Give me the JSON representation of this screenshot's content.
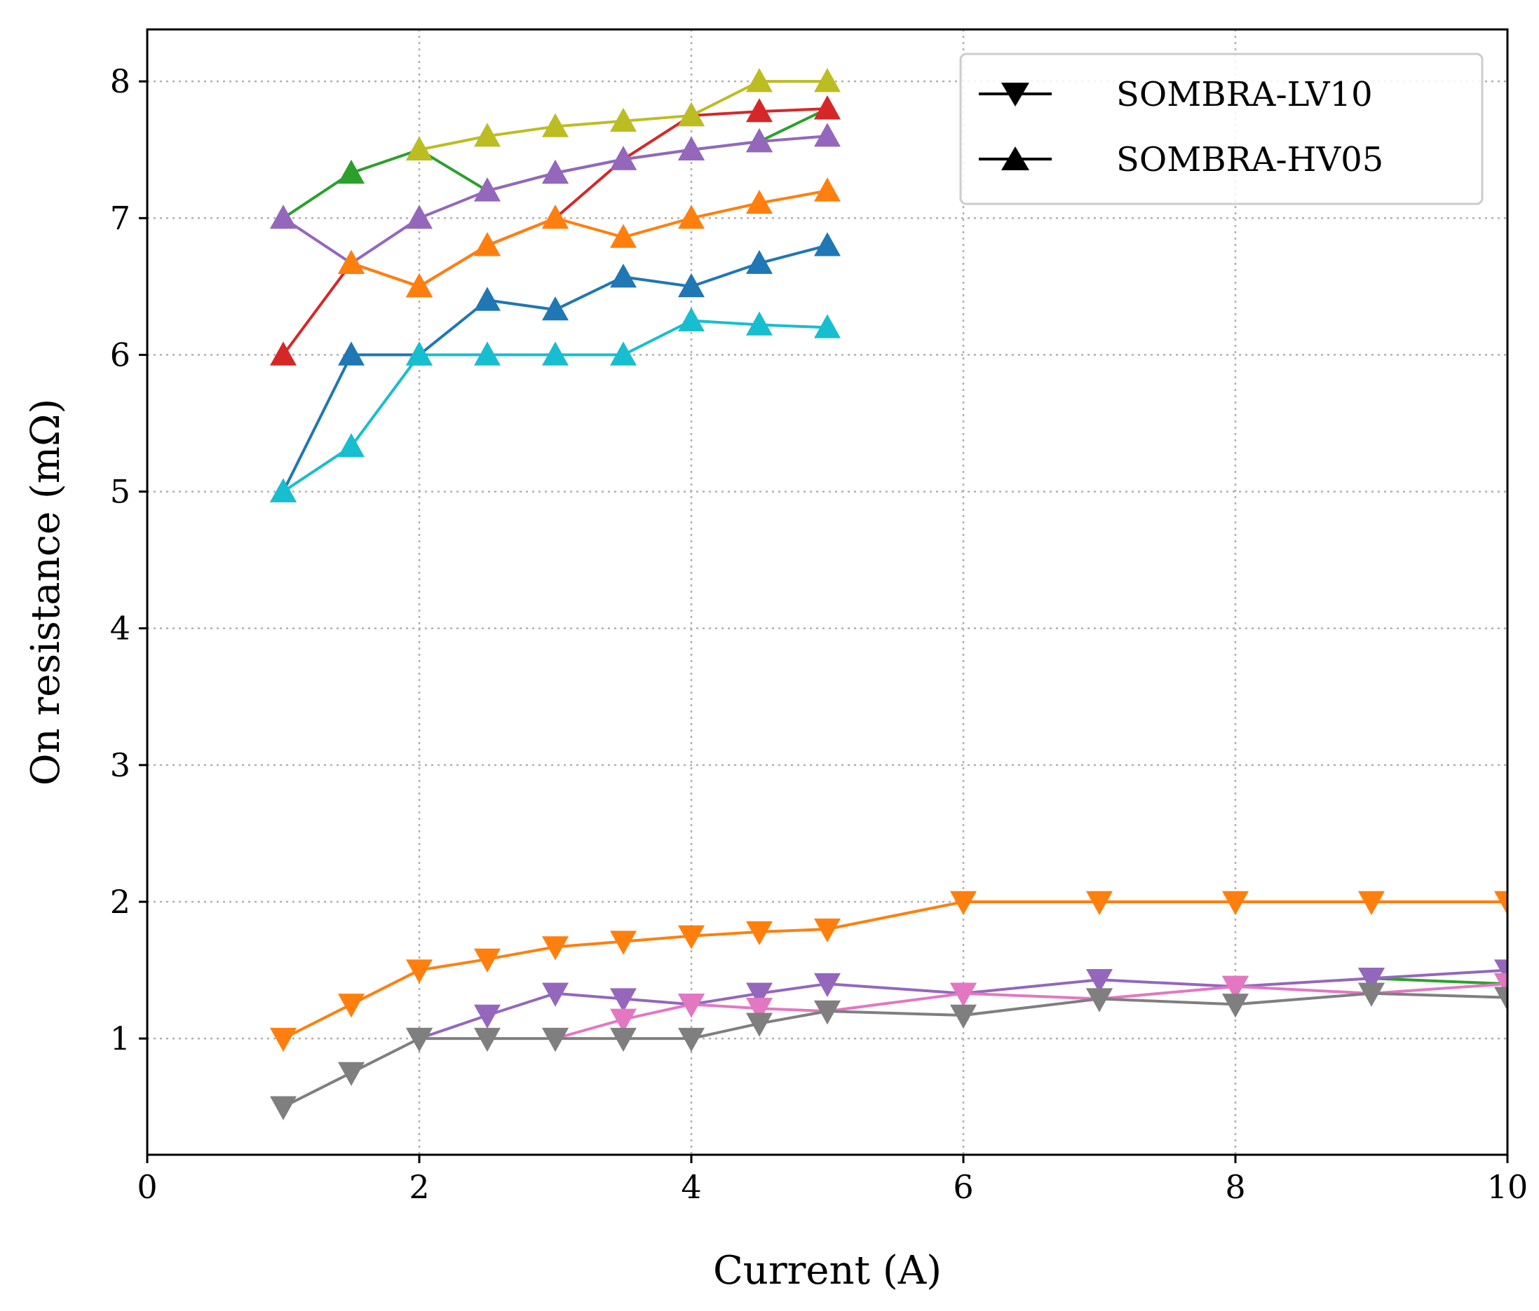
{
  "chart_data": {
    "type": "line",
    "title": "",
    "xlabel": "Current (A)",
    "ylabel": "On resistance (mΩ)",
    "xlim": [
      0,
      10
    ],
    "ylim": [
      0.15,
      8.38
    ],
    "xticks": [
      0,
      2,
      4,
      6,
      8,
      10
    ],
    "yticks": [
      1,
      2,
      3,
      4,
      5,
      6,
      7,
      8
    ],
    "grid": true,
    "legend_position": "top-right",
    "legend": [
      {
        "label": "SOMBRA-LV10",
        "marker": "triangle-down"
      },
      {
        "label": "SOMBRA-HV05",
        "marker": "triangle-up"
      }
    ],
    "series": [
      {
        "group": "SOMBRA-HV05",
        "marker": "triangle-up",
        "color": "#2ca02c",
        "x": [
          1,
          1.5,
          2,
          2.5,
          3,
          3.5,
          4,
          4.5,
          5
        ],
        "y": [
          7.0,
          7.33,
          7.5,
          7.2,
          7.33,
          7.43,
          7.5,
          7.56,
          7.8
        ]
      },
      {
        "group": "SOMBRA-HV05",
        "marker": "triangle-up",
        "color": "#d62728",
        "x": [
          1,
          1.5,
          2,
          2.5,
          3,
          3.5,
          4,
          4.5,
          5
        ],
        "y": [
          6.0,
          6.67,
          6.5,
          6.8,
          7.0,
          7.43,
          7.75,
          7.78,
          7.8
        ]
      },
      {
        "group": "SOMBRA-HV05",
        "marker": "triangle-up",
        "color": "#bcbd22",
        "x": [
          2,
          2.5,
          3,
          3.5,
          4,
          4.5,
          5
        ],
        "y": [
          7.5,
          7.6,
          7.67,
          7.71,
          7.75,
          8.0,
          8.0
        ]
      },
      {
        "group": "SOMBRA-HV05",
        "marker": "triangle-up",
        "color": "#9467bd",
        "x": [
          1,
          1.5,
          2,
          2.5,
          3,
          3.5,
          4,
          4.5,
          5
        ],
        "y": [
          7.0,
          6.67,
          7.0,
          7.2,
          7.33,
          7.43,
          7.5,
          7.56,
          7.6
        ]
      },
      {
        "group": "SOMBRA-HV05",
        "marker": "triangle-up",
        "color": "#ff7f0e",
        "x": [
          1.5,
          2,
          2.5,
          3,
          3.5,
          4,
          4.5,
          5
        ],
        "y": [
          6.67,
          6.5,
          6.8,
          7.0,
          6.86,
          7.0,
          7.11,
          7.2
        ]
      },
      {
        "group": "SOMBRA-HV05",
        "marker": "triangle-up",
        "color": "#1f77b4",
        "x": [
          1,
          1.5,
          2,
          2.5,
          3,
          3.5,
          4,
          4.5,
          5
        ],
        "y": [
          5.0,
          6.0,
          6.0,
          6.4,
          6.33,
          6.57,
          6.5,
          6.67,
          6.8
        ]
      },
      {
        "group": "SOMBRA-HV05",
        "marker": "triangle-up",
        "color": "#17becf",
        "x": [
          1,
          1.5,
          2,
          2.5,
          3,
          3.5,
          4,
          4.5,
          5
        ],
        "y": [
          5.0,
          5.33,
          6.0,
          6.0,
          6.0,
          6.0,
          6.25,
          6.22,
          6.2
        ]
      },
      {
        "group": "SOMBRA-LV10",
        "marker": "triangle-down",
        "color": "#ff7f0e",
        "x": [
          1,
          1.5,
          2,
          2.5,
          3,
          3.5,
          4,
          4.5,
          5,
          6,
          7,
          8,
          9,
          10
        ],
        "y": [
          1.0,
          1.25,
          1.5,
          1.58,
          1.67,
          1.71,
          1.75,
          1.78,
          1.8,
          2.0,
          2.0,
          2.0,
          2.0,
          2.0
        ]
      },
      {
        "group": "SOMBRA-LV10",
        "marker": "triangle-down",
        "color": "#2ca02c",
        "x": [
          9,
          10
        ],
        "y": [
          1.44,
          1.4
        ]
      },
      {
        "group": "SOMBRA-LV10",
        "marker": "triangle-down",
        "color": "#9467bd",
        "x": [
          2,
          2.5,
          3,
          3.5,
          4,
          4.5,
          5,
          6,
          7,
          8,
          9,
          10
        ],
        "y": [
          1.0,
          1.17,
          1.33,
          1.29,
          1.25,
          1.33,
          1.4,
          1.33,
          1.43,
          1.38,
          1.44,
          1.5
        ]
      },
      {
        "group": "SOMBRA-LV10",
        "marker": "triangle-down",
        "color": "#e377c2",
        "x": [
          3,
          3.5,
          4,
          4.5,
          5,
          6,
          7,
          8,
          9,
          10
        ],
        "y": [
          1.0,
          1.14,
          1.25,
          1.22,
          1.2,
          1.33,
          1.29,
          1.38,
          1.33,
          1.4
        ]
      },
      {
        "group": "SOMBRA-LV10",
        "marker": "triangle-down",
        "color": "#7f7f7f",
        "x": [
          1,
          1.5,
          2,
          2.5,
          3,
          3.5,
          4,
          4.5,
          5,
          6,
          7,
          8,
          9,
          10
        ],
        "y": [
          0.5,
          0.75,
          1.0,
          1.0,
          1.0,
          1.0,
          1.0,
          1.11,
          1.2,
          1.17,
          1.29,
          1.25,
          1.33,
          1.3
        ]
      }
    ]
  }
}
